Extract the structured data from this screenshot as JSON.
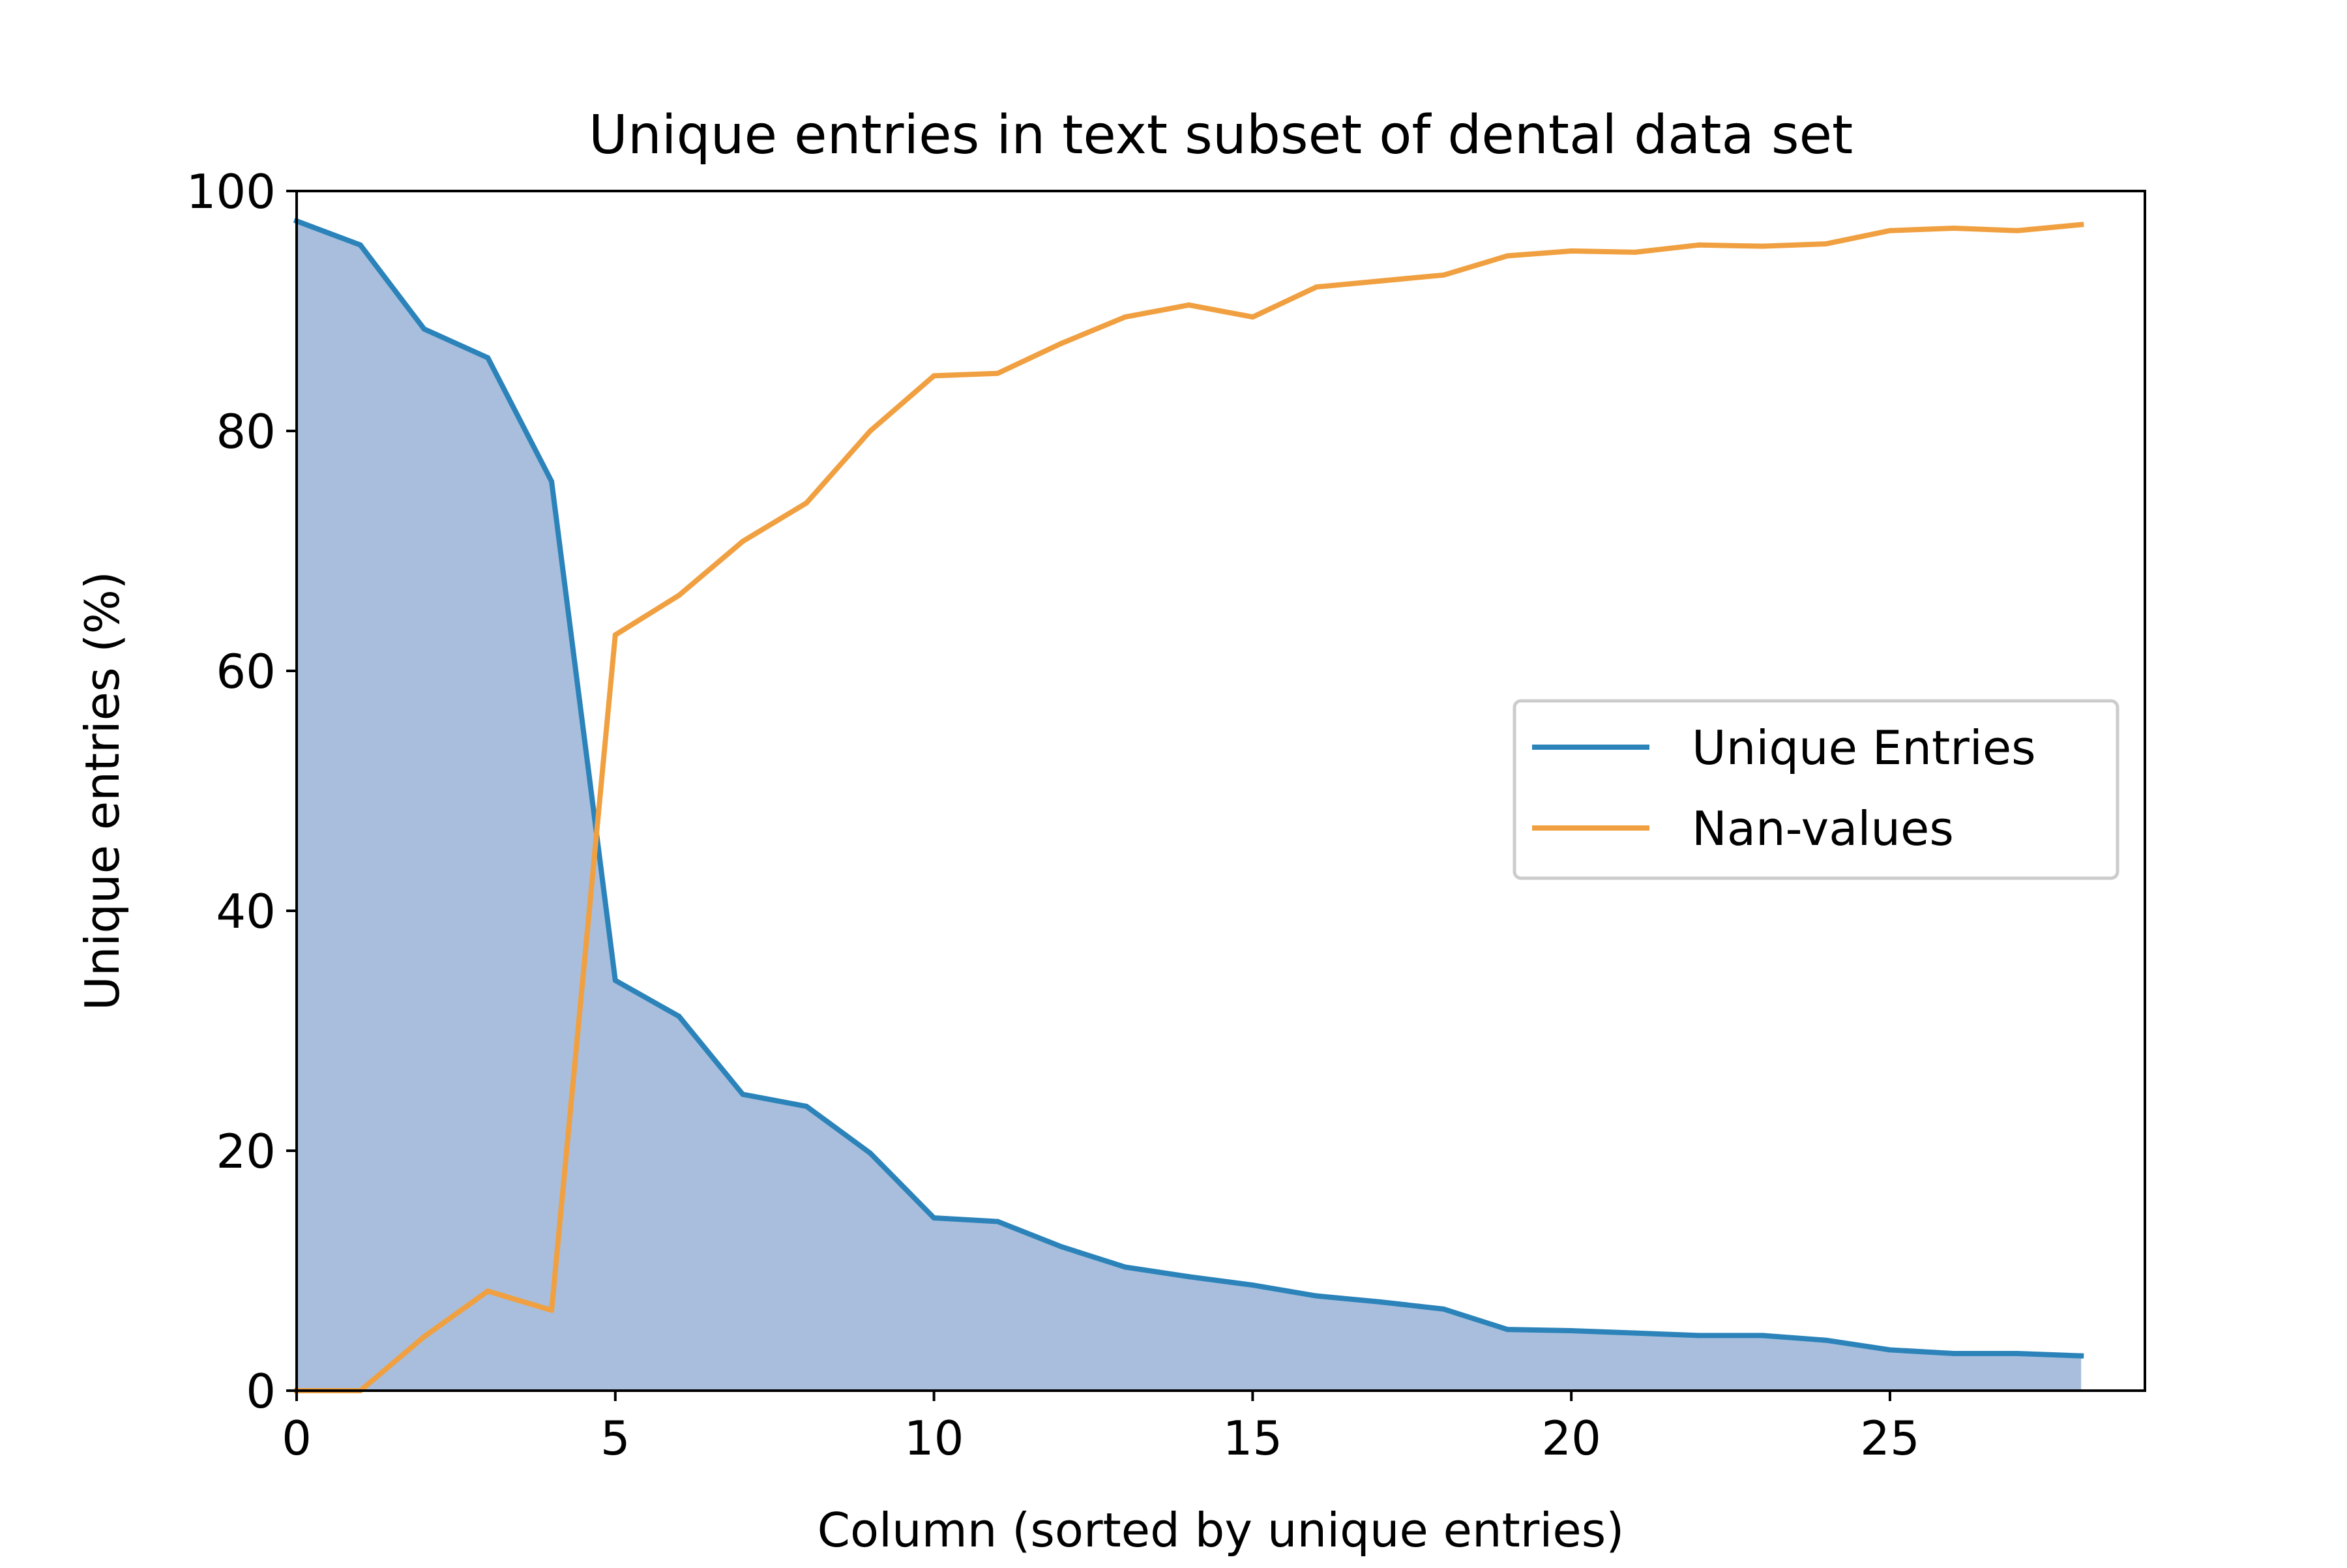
{
  "chart_data": {
    "type": "area",
    "title": "Unique entries in text subset of dental data set",
    "xlabel": "Column (sorted by unique entries)",
    "ylabel": "Unique entries (%)",
    "xlim": [
      0,
      29
    ],
    "ylim": [
      0,
      100
    ],
    "xticks": [
      0,
      5,
      10,
      15,
      20,
      25
    ],
    "yticks": [
      0,
      20,
      40,
      60,
      80,
      100
    ],
    "grid": false,
    "legend_position": "center-right",
    "x": [
      0,
      1,
      2,
      3,
      4,
      5,
      6,
      7,
      8,
      9,
      10,
      11,
      12,
      13,
      14,
      15,
      16,
      17,
      18,
      19,
      20,
      21,
      22,
      23,
      24,
      25,
      26,
      27,
      28
    ],
    "series": [
      {
        "name": "Unique Entries",
        "color": "#2b83ba",
        "fill": "#a8bedc",
        "filled": true,
        "values": [
          97.5,
          95.5,
          88.5,
          86.1,
          75.8,
          34.2,
          31.2,
          24.7,
          23.7,
          19.8,
          14.4,
          14.1,
          12.0,
          10.3,
          9.5,
          8.8,
          7.9,
          7.4,
          6.8,
          5.1,
          5.0,
          4.8,
          4.6,
          4.6,
          4.2,
          3.4,
          3.1,
          3.1,
          2.9
        ]
      },
      {
        "name": "Nan-values",
        "color": "#f0a040",
        "filled": false,
        "values": [
          0.0,
          0.0,
          4.5,
          8.3,
          6.7,
          63.0,
          66.3,
          70.8,
          74.0,
          80.0,
          84.6,
          84.8,
          87.3,
          89.5,
          90.5,
          89.5,
          92.0,
          92.5,
          93.0,
          94.6,
          95.0,
          94.9,
          95.5,
          95.4,
          95.6,
          96.7,
          96.9,
          96.7,
          97.2
        ]
      }
    ]
  }
}
